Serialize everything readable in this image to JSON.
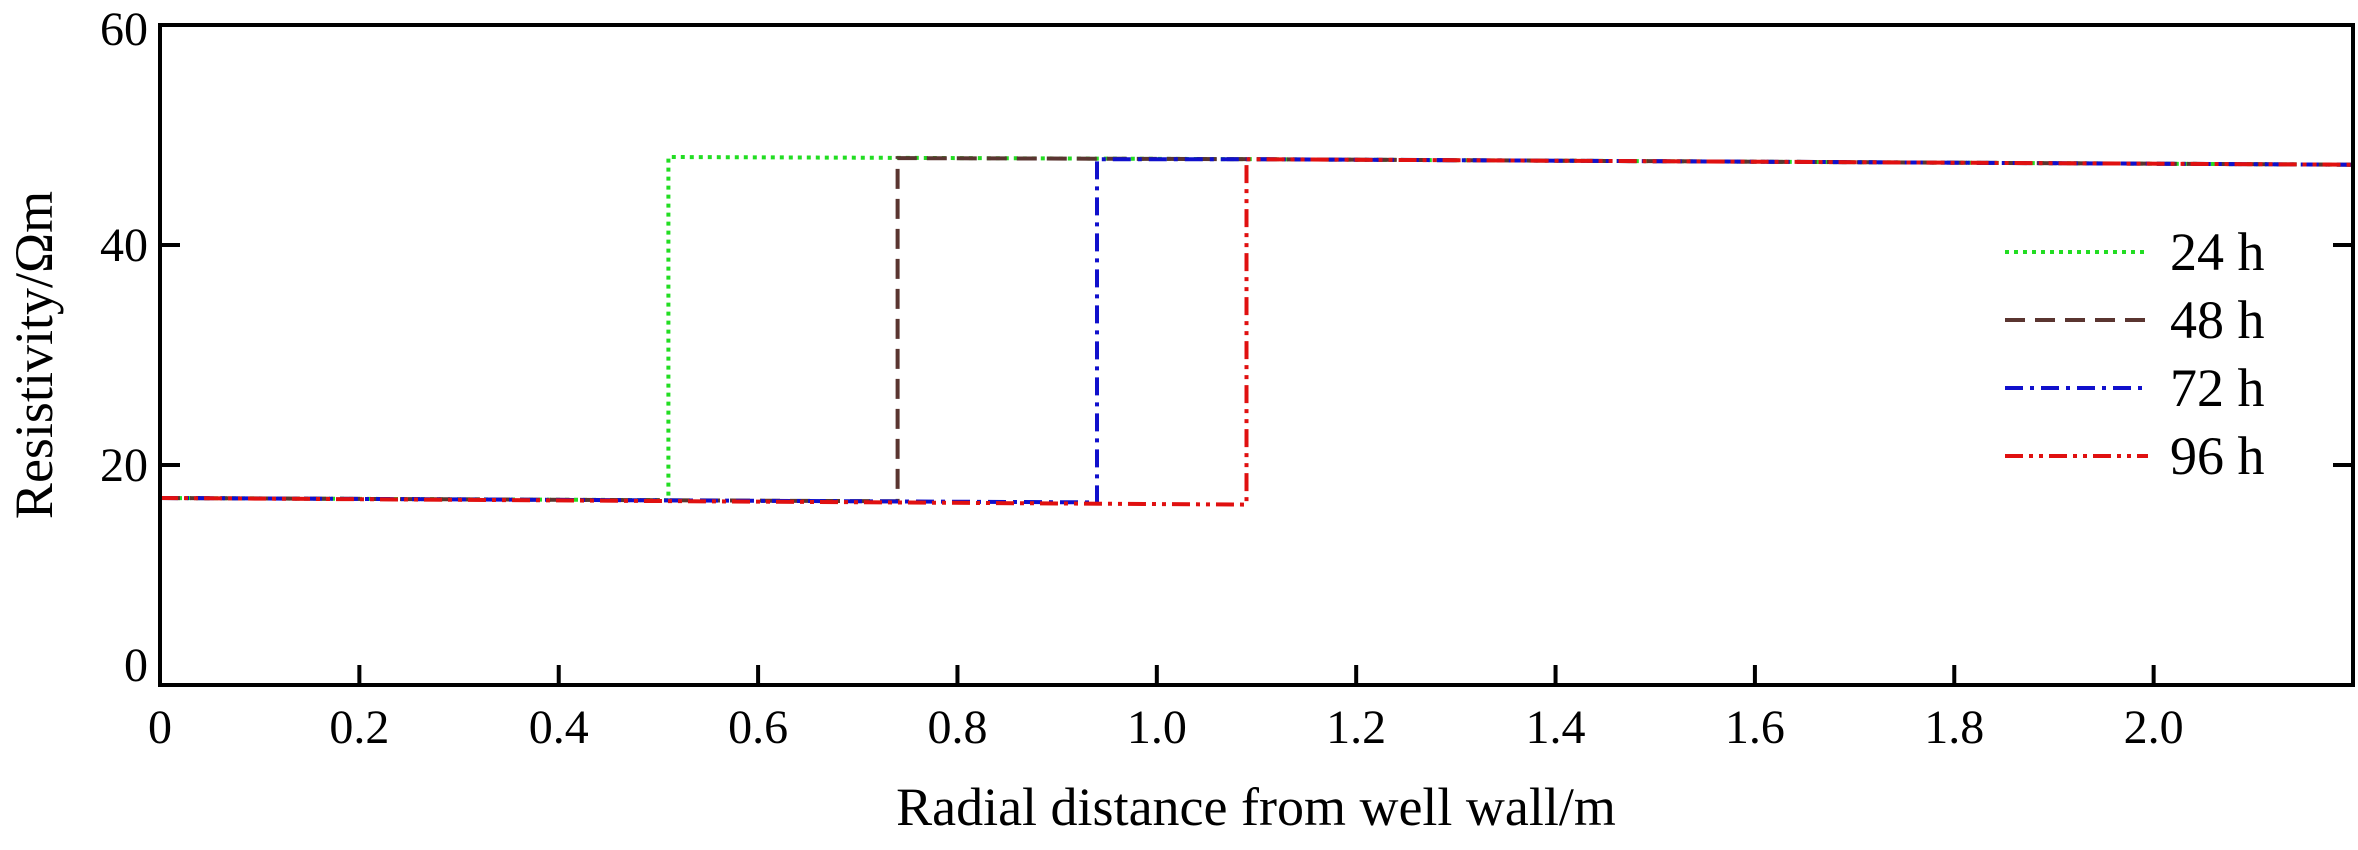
{
  "chart_data": {
    "type": "line",
    "title": "",
    "xlabel": "Radial distance from well wall/m",
    "ylabel": "Resistivity/Ωm",
    "xlim": [
      0,
      2.2
    ],
    "ylim": [
      0,
      60
    ],
    "x_ticks": [
      0,
      0.2,
      0.4,
      0.6,
      0.8,
      1.0,
      1.2,
      1.4,
      1.6,
      1.8,
      2.0
    ],
    "x_tick_labels": [
      "0",
      "0.2",
      "0.4",
      "0.6",
      "0.8",
      "1.0",
      "1.2",
      "1.4",
      "1.6",
      "1.8",
      "2.0"
    ],
    "y_ticks": [
      0,
      20,
      40,
      60
    ],
    "y_tick_labels": [
      "0",
      "20",
      "40",
      "60"
    ],
    "grid": false,
    "legend_position": "right",
    "series": [
      {
        "name": "24 h",
        "color": "#22dd22",
        "dash": "dotted",
        "x": [
          0,
          0.51,
          0.51,
          1.1,
          2.2
        ],
        "y": [
          17.0,
          16.8,
          48.0,
          47.8,
          47.3
        ]
      },
      {
        "name": "48 h",
        "color": "#5a3530",
        "dash": "dashed",
        "x": [
          0,
          0.74,
          0.74,
          1.1,
          2.2
        ],
        "y": [
          17.0,
          16.7,
          47.9,
          47.8,
          47.3
        ]
      },
      {
        "name": "72 h",
        "color": "#1010cc",
        "dash": "dashdot",
        "x": [
          0,
          0.94,
          0.94,
          1.1,
          2.2
        ],
        "y": [
          17.0,
          16.6,
          47.8,
          47.8,
          47.3
        ]
      },
      {
        "name": "96 h",
        "color": "#e01010",
        "dash": "dashdotdot",
        "x": [
          0,
          1.09,
          1.09,
          2.2
        ],
        "y": [
          17.0,
          16.4,
          47.8,
          47.3
        ]
      }
    ]
  }
}
